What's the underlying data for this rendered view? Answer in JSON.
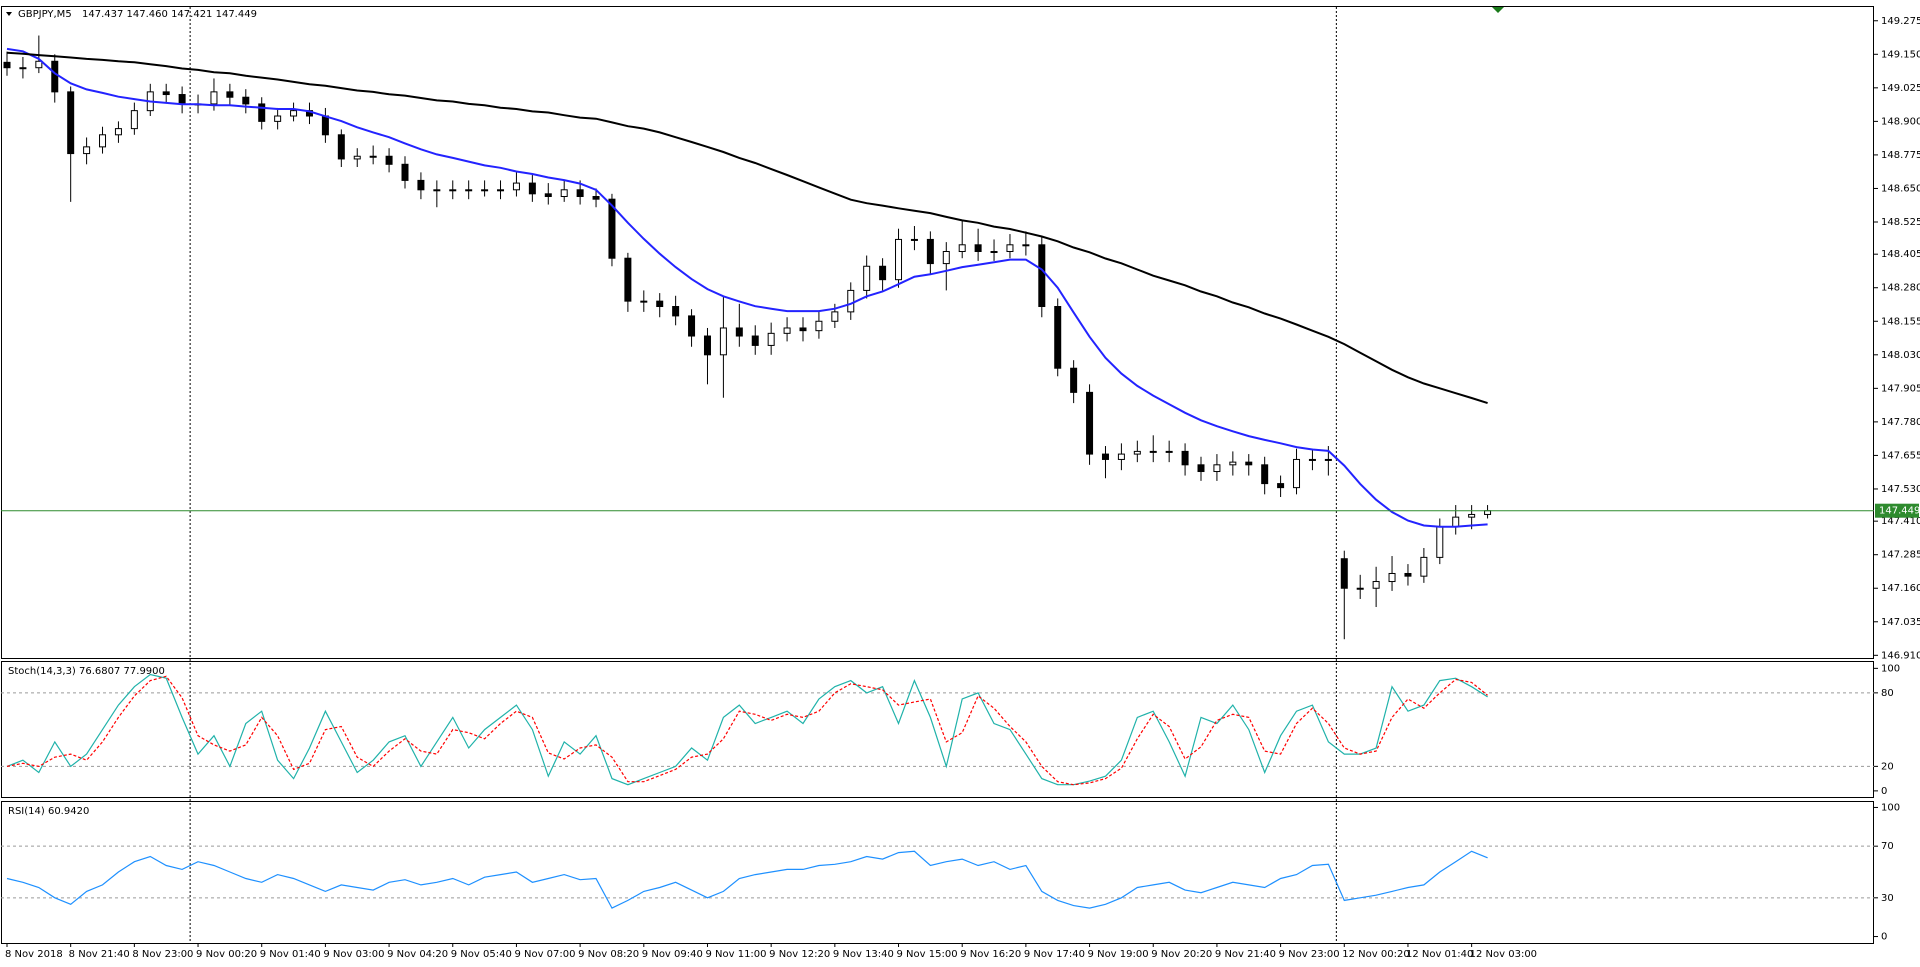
{
  "chart_data": [
    {
      "type": "candlestick",
      "title": "GBPJPY,M5",
      "quote": "147.437 147.460 147.421 147.449",
      "categories": [
        "8 Nov 2018",
        null,
        null,
        null,
        "8 Nov 21:40",
        null,
        null,
        null,
        "8 Nov 23:00",
        null,
        null,
        null,
        "9 Nov 00:20",
        null,
        null,
        null,
        "9 Nov 01:40",
        null,
        null,
        null,
        "9 Nov 03:00",
        null,
        null,
        null,
        "9 Nov 04:20",
        null,
        null,
        null,
        "9 Nov 05:40",
        null,
        null,
        null,
        "9 Nov 07:00",
        null,
        null,
        null,
        "9 Nov 08:20",
        null,
        null,
        null,
        "9 Nov 09:40",
        null,
        null,
        null,
        "9 Nov 11:00",
        null,
        null,
        null,
        "9 Nov 12:20",
        null,
        null,
        null,
        "9 Nov 13:40",
        null,
        null,
        null,
        "9 Nov 15:00",
        null,
        null,
        null,
        "9 Nov 16:20",
        null,
        null,
        null,
        "9 Nov 17:40",
        null,
        null,
        null,
        "9 Nov 19:00",
        null,
        null,
        null,
        "9 Nov 20:20",
        null,
        null,
        null,
        "9 Nov 21:40",
        null,
        null,
        null,
        "9 Nov 23:00",
        null,
        null,
        null,
        "12 Nov 00:20",
        null,
        null,
        null,
        "12 Nov 01:40",
        null,
        null,
        null,
        "12 Nov 03:00",
        null
      ],
      "open": [
        149.12,
        149.1,
        149.1,
        149.124,
        149.01,
        148.78,
        148.805,
        148.85,
        148.873,
        148.94,
        149.01,
        149.0,
        148.965,
        148.965,
        149.01,
        148.99,
        148.965,
        148.9,
        148.92,
        148.94,
        148.92,
        148.85,
        148.76,
        148.77,
        148.77,
        148.74,
        148.68,
        148.645,
        148.645,
        148.645,
        148.645,
        148.645,
        148.645,
        148.67,
        148.63,
        148.62,
        148.645,
        148.62,
        148.61,
        148.39,
        148.23,
        148.23,
        148.21,
        148.175,
        148.1,
        148.03,
        148.13,
        148.1,
        148.065,
        148.11,
        148.13,
        148.12,
        148.155,
        148.19,
        148.27,
        148.36,
        148.31,
        148.46,
        148.46,
        148.37,
        148.415,
        148.44,
        148.415,
        148.415,
        148.44,
        148.44,
        148.21,
        147.98,
        147.89,
        147.66,
        147.64,
        147.66,
        147.67,
        147.67,
        147.67,
        147.62,
        147.595,
        147.62,
        147.63,
        147.62,
        147.55,
        147.535,
        147.64,
        147.64,
        147.27,
        147.16,
        147.16,
        147.185,
        147.215,
        147.205,
        147.275,
        147.39,
        147.425,
        147.435
      ],
      "high": [
        149.16,
        149.14,
        149.22,
        149.15,
        149.03,
        148.84,
        148.88,
        148.9,
        148.97,
        149.04,
        149.04,
        149.03,
        149.0,
        149.06,
        149.04,
        149.02,
        148.99,
        148.95,
        148.97,
        148.97,
        148.95,
        148.87,
        148.8,
        148.81,
        148.8,
        148.77,
        148.71,
        148.68,
        148.68,
        148.68,
        148.68,
        148.68,
        148.71,
        148.7,
        148.67,
        148.68,
        148.68,
        148.65,
        148.63,
        148.41,
        148.27,
        148.26,
        148.25,
        148.2,
        148.13,
        148.25,
        148.22,
        148.14,
        148.15,
        148.17,
        148.17,
        148.19,
        148.22,
        148.3,
        148.4,
        148.39,
        148.5,
        148.51,
        148.49,
        148.45,
        148.53,
        148.5,
        148.46,
        148.48,
        148.49,
        148.47,
        148.24,
        148.01,
        147.92,
        147.69,
        147.7,
        147.71,
        147.73,
        147.71,
        147.7,
        147.65,
        147.66,
        147.67,
        147.66,
        147.65,
        147.58,
        147.68,
        147.68,
        147.69,
        147.3,
        147.21,
        147.24,
        147.28,
        147.25,
        147.31,
        147.42,
        147.47,
        147.47,
        147.47
      ],
      "low": [
        149.07,
        149.06,
        149.08,
        148.97,
        148.6,
        148.74,
        148.78,
        148.82,
        148.85,
        148.92,
        148.97,
        148.93,
        148.93,
        148.94,
        148.96,
        148.93,
        148.87,
        148.87,
        148.9,
        148.89,
        148.82,
        148.73,
        148.73,
        148.74,
        148.71,
        148.65,
        148.61,
        148.58,
        148.61,
        148.61,
        148.62,
        148.61,
        148.62,
        148.6,
        148.59,
        148.6,
        148.59,
        148.58,
        148.36,
        148.19,
        148.19,
        148.17,
        148.14,
        148.06,
        147.92,
        147.87,
        148.06,
        148.03,
        148.03,
        148.08,
        148.08,
        148.09,
        148.13,
        148.16,
        148.24,
        148.27,
        148.28,
        148.42,
        148.33,
        148.27,
        148.39,
        148.38,
        148.38,
        148.39,
        148.4,
        148.17,
        147.95,
        147.85,
        147.62,
        147.57,
        147.6,
        147.63,
        147.63,
        147.63,
        147.58,
        147.56,
        147.56,
        147.58,
        147.58,
        147.51,
        147.5,
        147.51,
        147.6,
        147.58,
        146.97,
        147.12,
        147.09,
        147.15,
        147.17,
        147.18,
        147.25,
        147.36,
        147.38,
        147.42
      ],
      "close": [
        149.1,
        149.1,
        149.124,
        149.01,
        148.78,
        148.805,
        148.85,
        148.873,
        148.94,
        149.01,
        149.0,
        148.965,
        148.965,
        149.01,
        148.99,
        148.965,
        148.9,
        148.92,
        148.94,
        148.92,
        148.85,
        148.76,
        148.77,
        148.77,
        148.74,
        148.68,
        148.645,
        148.645,
        148.645,
        148.645,
        148.645,
        148.645,
        148.67,
        148.63,
        148.62,
        148.645,
        148.62,
        148.61,
        148.39,
        148.23,
        148.23,
        148.21,
        148.175,
        148.1,
        148.03,
        148.13,
        148.1,
        148.065,
        148.11,
        148.13,
        148.12,
        148.155,
        148.19,
        148.27,
        148.36,
        148.31,
        148.46,
        148.46,
        148.37,
        148.415,
        148.44,
        148.415,
        148.415,
        148.44,
        148.44,
        148.21,
        147.98,
        147.89,
        147.66,
        147.64,
        147.66,
        147.67,
        147.67,
        147.67,
        147.62,
        147.595,
        147.62,
        147.63,
        147.62,
        147.55,
        147.535,
        147.64,
        147.64,
        147.64,
        147.16,
        147.16,
        147.185,
        147.215,
        147.205,
        147.275,
        147.39,
        147.425,
        147.435,
        147.449
      ],
      "up_color": "#ffffff",
      "down_color": "#000000",
      "wick_color": "#000000",
      "series": [
        {
          "color": "#2323ff",
          "values": [
            149.17,
            149.161,
            149.133,
            149.079,
            149.042,
            149.019,
            149.006,
            148.992,
            148.983,
            148.974,
            148.969,
            148.964,
            148.964,
            148.96,
            148.96,
            148.955,
            148.951,
            148.946,
            148.946,
            148.937,
            148.919,
            148.901,
            148.878,
            148.859,
            148.841,
            148.818,
            148.796,
            148.777,
            148.764,
            148.75,
            148.736,
            148.727,
            148.713,
            148.704,
            148.691,
            148.681,
            148.668,
            148.645,
            148.586,
            148.522,
            148.462,
            148.407,
            148.357,
            148.312,
            148.275,
            148.248,
            148.229,
            148.211,
            148.202,
            148.193,
            148.193,
            148.193,
            148.202,
            148.22,
            148.248,
            148.266,
            148.293,
            148.321,
            148.33,
            148.343,
            148.357,
            148.366,
            148.375,
            148.385,
            148.385,
            148.348,
            148.28,
            148.188,
            148.097,
            148.019,
            147.96,
            147.914,
            147.878,
            147.846,
            147.814,
            147.786,
            147.764,
            147.745,
            147.727,
            147.713,
            147.7,
            147.686,
            147.677,
            147.672,
            147.617,
            147.549,
            147.49,
            147.444,
            147.412,
            147.394,
            147.389,
            147.389,
            147.394,
            147.398
          ]
        },
        {
          "color": "#000000",
          "values": [
            149.156,
            149.152,
            149.147,
            149.143,
            149.138,
            149.133,
            149.129,
            149.124,
            149.12,
            149.113,
            149.106,
            149.097,
            149.092,
            149.083,
            149.079,
            149.07,
            149.063,
            149.056,
            149.047,
            149.038,
            149.033,
            149.024,
            149.015,
            149.01,
            149.001,
            148.996,
            148.987,
            148.978,
            148.974,
            148.965,
            148.96,
            148.951,
            148.946,
            148.937,
            148.933,
            148.923,
            148.914,
            148.91,
            148.896,
            148.882,
            148.873,
            148.859,
            148.841,
            148.823,
            148.805,
            148.786,
            148.764,
            148.745,
            148.722,
            148.7,
            148.677,
            148.654,
            148.631,
            148.608,
            148.595,
            148.586,
            148.576,
            148.567,
            148.558,
            148.544,
            148.531,
            148.522,
            148.508,
            148.499,
            148.485,
            148.471,
            148.453,
            148.43,
            148.412,
            148.389,
            148.371,
            148.348,
            148.325,
            148.307,
            148.289,
            148.266,
            148.248,
            148.225,
            148.207,
            148.184,
            148.165,
            148.143,
            148.12,
            148.097,
            148.07,
            148.038,
            148.006,
            147.974,
            147.946,
            147.923,
            147.905,
            147.887,
            147.869,
            147.85
          ]
        }
      ],
      "last_price": 147.449,
      "last_price_color": "#2e8b2e",
      "ylim": [
        146.9,
        149.33
      ],
      "yticks": [
        149.275,
        {
          "value": 149.15,
          "label": "149.150"
        },
        149.025,
        {
          "value": 148.9,
          "label": "148.900"
        },
        148.775,
        {
          "value": 148.65,
          "label": "148.650"
        },
        148.525,
        148.405,
        {
          "value": 148.28,
          "label": "148.280"
        },
        148.155,
        {
          "value": 148.03,
          "label": "148.030"
        },
        147.905,
        {
          "value": 147.78,
          "label": "147.780"
        },
        147.655,
        {
          "value": 147.53,
          "label": "147.530"
        },
        {
          "value": 147.41,
          "label": "147.410"
        },
        147.285,
        {
          "value": 147.16,
          "label": "147.160"
        },
        147.035,
        {
          "value": 146.91,
          "label": "146.910"
        }
      ],
      "grid": false
    },
    {
      "type": "line",
      "title": "Stoch(14,3,3) 76.6807 77.9900",
      "series": [
        {
          "color": "#20b2aa",
          "values": [
            20,
            25,
            15,
            40,
            20,
            30,
            50,
            70,
            85,
            95,
            92,
            60,
            30,
            45,
            20,
            55,
            65,
            25,
            10,
            35,
            65,
            40,
            15,
            25,
            40,
            45,
            20,
            40,
            60,
            35,
            50,
            60,
            70,
            50,
            12,
            40,
            30,
            45,
            10,
            5,
            10,
            15,
            20,
            35,
            25,
            60,
            70,
            55,
            60,
            65,
            55,
            75,
            85,
            90,
            80,
            85,
            55,
            90,
            60,
            20,
            75,
            80,
            55,
            50,
            30,
            10,
            5,
            5,
            8,
            12,
            25,
            60,
            65,
            40,
            12,
            60,
            55,
            70,
            50,
            15,
            45,
            65,
            70,
            40,
            30,
            30,
            35,
            85,
            65,
            70,
            90,
            92,
            85,
            76.7
          ]
        },
        {
          "color": "#ff0000",
          "dash": true,
          "values": [
            20,
            22.5,
            20,
            27.5,
            30,
            25,
            40,
            60,
            77.5,
            90,
            93.5,
            76,
            45,
            37.5,
            32.5,
            37.5,
            60,
            45,
            17.5,
            22.5,
            50,
            52.5,
            27.5,
            20,
            32.5,
            42.5,
            32.5,
            30,
            50,
            47.5,
            42.5,
            55,
            65,
            60,
            31,
            26,
            35,
            37.5,
            27.5,
            7.5,
            7.5,
            12.5,
            17.5,
            27.5,
            30,
            42.5,
            65,
            62.5,
            57.5,
            62.5,
            60,
            65,
            80,
            87.5,
            85,
            82.5,
            70,
            72.5,
            75,
            40,
            47.5,
            77.5,
            67.5,
            52.5,
            40,
            20,
            7.5,
            5,
            6.5,
            10,
            18.5,
            42.5,
            62.5,
            52.5,
            26,
            36,
            57.5,
            62.5,
            60,
            32.5,
            30,
            55,
            67.5,
            55,
            35,
            30,
            32.5,
            60,
            75,
            67.5,
            80,
            91,
            88.5,
            78
          ]
        }
      ],
      "ylim": [
        -5,
        106
      ],
      "yticks": [
        0,
        20,
        80,
        100
      ],
      "grid": "dashed"
    },
    {
      "type": "line",
      "title": "RSI(14) 60.9420",
      "series": [
        {
          "color": "#1e90ff",
          "values": [
            45,
            42,
            38,
            30,
            25,
            35,
            40,
            50,
            58,
            62,
            55,
            52,
            58,
            55,
            50,
            45,
            42,
            48,
            45,
            40,
            35,
            40,
            38,
            36,
            42,
            44,
            40,
            42,
            45,
            40,
            46,
            48,
            50,
            42,
            45,
            48,
            44,
            45,
            22,
            28,
            35,
            38,
            42,
            36,
            30,
            35,
            45,
            48,
            50,
            52,
            52,
            55,
            56,
            58,
            62,
            60,
            65,
            66,
            55,
            58,
            60,
            55,
            58,
            52,
            55,
            35,
            28,
            24,
            22,
            25,
            30,
            38,
            40,
            42,
            36,
            34,
            38,
            42,
            40,
            38,
            45,
            48,
            55,
            56,
            28,
            30,
            32,
            35,
            38,
            40,
            50,
            58,
            66,
            61
          ]
        }
      ],
      "ylim": [
        -5,
        105
      ],
      "yticks": [
        0,
        30,
        70,
        100
      ],
      "grid": "dashed"
    }
  ]
}
